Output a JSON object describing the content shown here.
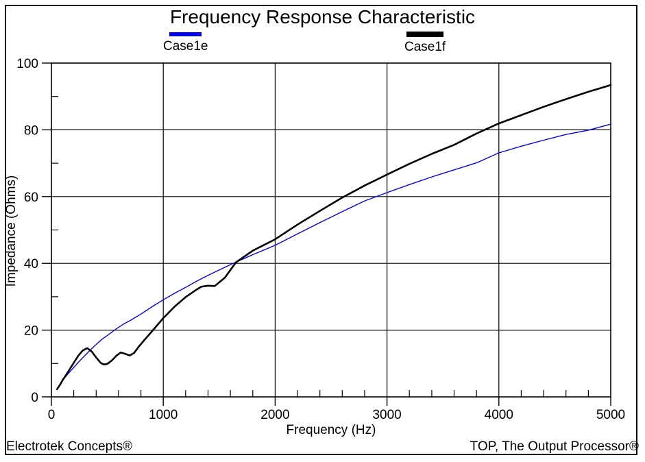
{
  "page": {
    "title": "Frequency Response Characteristic",
    "footer_left": "Electrotek Concepts®",
    "footer_right": "TOP, The Output Processor®"
  },
  "chart_data": {
    "type": "line",
    "title": "Frequency Response Characteristic",
    "xlabel": "Frequency (Hz)",
    "ylabel": "Impedance (Ohms)",
    "xlim": [
      0,
      5000
    ],
    "ylim": [
      0,
      100
    ],
    "x_major_ticks": [
      0,
      1000,
      2000,
      3000,
      4000,
      5000
    ],
    "x_minor_step": 200,
    "y_major_ticks": [
      0,
      20,
      40,
      60,
      80,
      100
    ],
    "y_minor_step": 10,
    "grid": "major",
    "legend_position": "top",
    "axis_color": "#000000",
    "series": [
      {
        "name": "Case1e",
        "color": "#0000ee",
        "stroke_width": 1.4,
        "points": [
          [
            50,
            2.3
          ],
          [
            100,
            4.9
          ],
          [
            150,
            7.0
          ],
          [
            200,
            8.8
          ],
          [
            250,
            10.7
          ],
          [
            300,
            12.4
          ],
          [
            350,
            14.1
          ],
          [
            400,
            15.7
          ],
          [
            450,
            17.2
          ],
          [
            500,
            18.4
          ],
          [
            580,
            20.4
          ],
          [
            650,
            21.9
          ],
          [
            700,
            22.8
          ],
          [
            800,
            24.8
          ],
          [
            900,
            27.0
          ],
          [
            1000,
            29.1
          ],
          [
            1100,
            31.0
          ],
          [
            1200,
            32.8
          ],
          [
            1300,
            34.7
          ],
          [
            1400,
            36.4
          ],
          [
            1500,
            38.0
          ],
          [
            1600,
            39.6
          ],
          [
            1700,
            41.1
          ],
          [
            1800,
            42.6
          ],
          [
            1900,
            44.0
          ],
          [
            2000,
            45.4
          ],
          [
            2200,
            48.8
          ],
          [
            2400,
            52.2
          ],
          [
            2600,
            55.5
          ],
          [
            2800,
            58.7
          ],
          [
            3000,
            61.2
          ],
          [
            3200,
            63.6
          ],
          [
            3400,
            65.9
          ],
          [
            3600,
            68.0
          ],
          [
            3800,
            70.1
          ],
          [
            4000,
            73.1
          ],
          [
            4200,
            75.1
          ],
          [
            4400,
            76.9
          ],
          [
            4600,
            78.6
          ],
          [
            4800,
            79.9
          ],
          [
            5000,
            81.7
          ]
        ]
      },
      {
        "name": "Case1f",
        "color": "#000000",
        "stroke_width": 2.6,
        "points": [
          [
            50,
            2.3
          ],
          [
            80,
            3.8
          ],
          [
            100,
            5.0
          ],
          [
            130,
            6.5
          ],
          [
            160,
            8.1
          ],
          [
            200,
            10.2
          ],
          [
            240,
            12.3
          ],
          [
            280,
            13.9
          ],
          [
            320,
            14.6
          ],
          [
            360,
            13.6
          ],
          [
            400,
            11.8
          ],
          [
            440,
            10.2
          ],
          [
            470,
            9.7
          ],
          [
            500,
            9.9
          ],
          [
            540,
            10.9
          ],
          [
            580,
            12.3
          ],
          [
            620,
            13.3
          ],
          [
            660,
            12.9
          ],
          [
            700,
            12.4
          ],
          [
            740,
            13.2
          ],
          [
            780,
            15.0
          ],
          [
            820,
            16.6
          ],
          [
            900,
            19.7
          ],
          [
            1000,
            23.6
          ],
          [
            1100,
            27.0
          ],
          [
            1200,
            29.9
          ],
          [
            1300,
            32.2
          ],
          [
            1340,
            33.0
          ],
          [
            1400,
            33.3
          ],
          [
            1460,
            33.2
          ],
          [
            1550,
            35.7
          ],
          [
            1650,
            40.3
          ],
          [
            1800,
            43.8
          ],
          [
            2000,
            47.2
          ],
          [
            2200,
            51.6
          ],
          [
            2400,
            55.7
          ],
          [
            2600,
            59.7
          ],
          [
            2800,
            63.3
          ],
          [
            3000,
            66.6
          ],
          [
            3200,
            69.8
          ],
          [
            3400,
            72.8
          ],
          [
            3600,
            75.5
          ],
          [
            3800,
            78.9
          ],
          [
            4000,
            81.9
          ],
          [
            4200,
            84.4
          ],
          [
            4400,
            86.9
          ],
          [
            4600,
            89.2
          ],
          [
            4800,
            91.4
          ],
          [
            5000,
            93.4
          ]
        ]
      }
    ]
  }
}
